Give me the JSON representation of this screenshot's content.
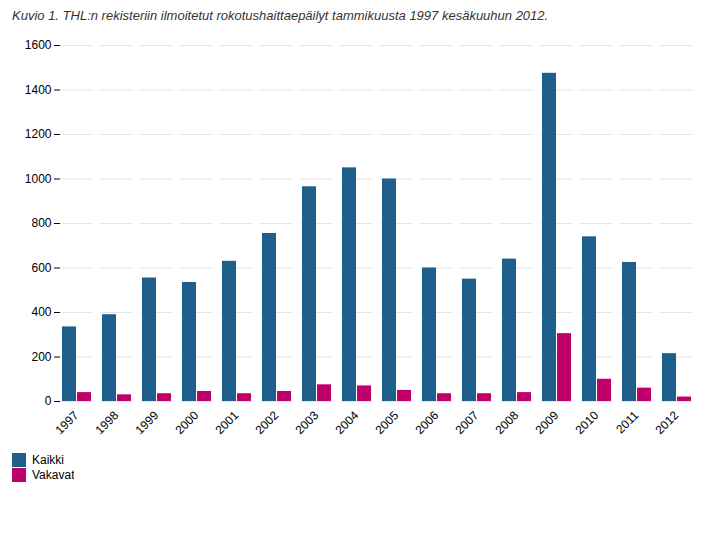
{
  "chart_data": {
    "type": "bar",
    "title": "Kuvio 1. THL:n rekisteriin ilmoitetut rokotushaittaepäilyt tammikuusta 1997 kesäkuuhun 2012.",
    "categories": [
      "1997",
      "1998",
      "1999",
      "2000",
      "2001",
      "2002",
      "2003",
      "2004",
      "2005",
      "2006",
      "2007",
      "2008",
      "2009",
      "2010",
      "2011",
      "2012"
    ],
    "series": [
      {
        "name": "Kaikki",
        "color": "#1f5f8b",
        "values": [
          335,
          390,
          555,
          535,
          630,
          755,
          965,
          1050,
          1000,
          600,
          550,
          640,
          1475,
          740,
          625,
          215
        ]
      },
      {
        "name": "Vakavat",
        "color": "#c0006a",
        "values": [
          40,
          30,
          35,
          45,
          35,
          45,
          75,
          70,
          50,
          35,
          35,
          40,
          305,
          100,
          60,
          20
        ]
      }
    ],
    "ylim": [
      0,
      1600
    ],
    "yticks": [
      0,
      200,
      400,
      600,
      800,
      1000,
      1200,
      1400,
      1600
    ],
    "grid": true,
    "legend": "lower left"
  }
}
